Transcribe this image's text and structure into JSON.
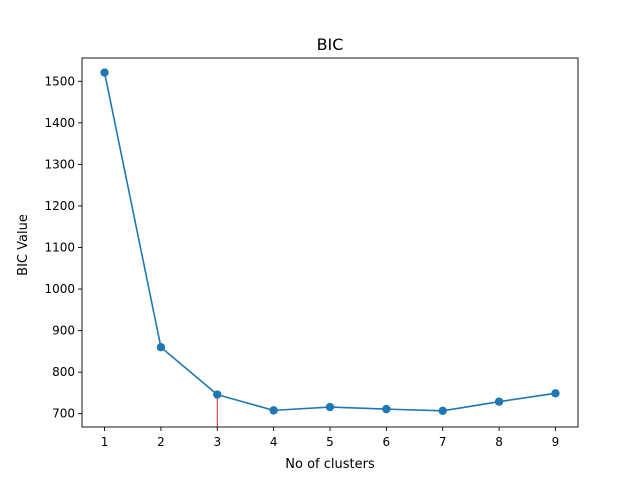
{
  "chart_data": {
    "type": "line",
    "title": "BIC",
    "xlabel": "No of clusters",
    "ylabel": "BIC Value",
    "x": [
      1,
      2,
      3,
      4,
      5,
      6,
      7,
      8,
      9
    ],
    "series": [
      {
        "values": [
          1521,
          860,
          746,
          708,
          716,
          711,
          707,
          729,
          749
        ],
        "color": "#1f77b4",
        "marker": "circle"
      }
    ],
    "xlim": [
      0.6,
      9.4
    ],
    "ylim": [
      668,
      1556
    ],
    "xticks": [
      1,
      2,
      3,
      4,
      5,
      6,
      7,
      8,
      9
    ],
    "yticks": [
      700,
      800,
      900,
      1000,
      1100,
      1200,
      1300,
      1400,
      1500
    ],
    "grid": false,
    "legend": "none",
    "annotations": [
      {
        "type": "vertical-line",
        "x": 3,
        "from_y": 668,
        "to_y": 746,
        "color": "#d62728"
      }
    ]
  }
}
